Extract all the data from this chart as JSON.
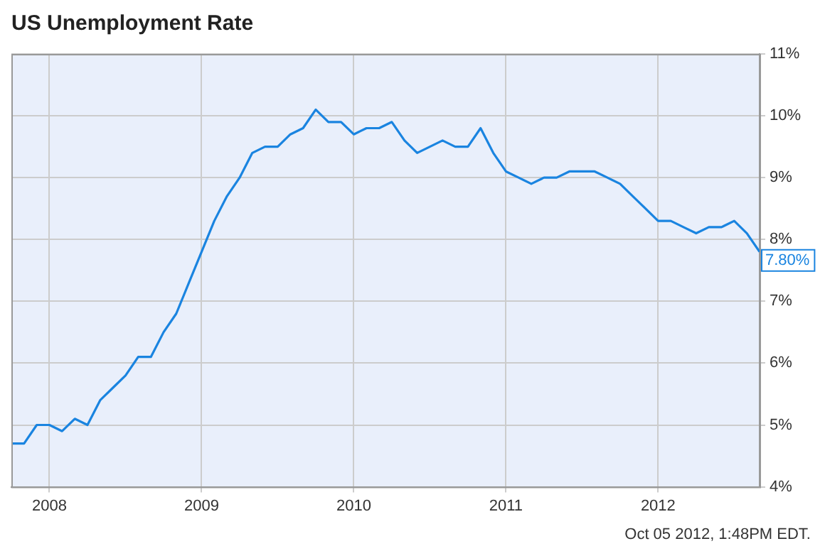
{
  "chart_data": {
    "type": "line",
    "title": "US Unemployment Rate",
    "x": [
      "2007-10",
      "2007-11",
      "2007-12",
      "2008-01",
      "2008-02",
      "2008-03",
      "2008-04",
      "2008-05",
      "2008-06",
      "2008-07",
      "2008-08",
      "2008-09",
      "2008-10",
      "2008-11",
      "2008-12",
      "2009-01",
      "2009-02",
      "2009-03",
      "2009-04",
      "2009-05",
      "2009-06",
      "2009-07",
      "2009-08",
      "2009-09",
      "2009-10",
      "2009-11",
      "2009-12",
      "2010-01",
      "2010-02",
      "2010-03",
      "2010-04",
      "2010-05",
      "2010-06",
      "2010-07",
      "2010-08",
      "2010-09",
      "2010-10",
      "2010-11",
      "2010-12",
      "2011-01",
      "2011-02",
      "2011-03",
      "2011-04",
      "2011-05",
      "2011-06",
      "2011-07",
      "2011-08",
      "2011-09",
      "2011-10",
      "2011-11",
      "2011-12",
      "2012-01",
      "2012-02",
      "2012-03",
      "2012-04",
      "2012-05",
      "2012-06",
      "2012-07",
      "2012-08",
      "2012-09"
    ],
    "series": [
      {
        "color": "#1a84e0",
        "values": [
          4.7,
          4.7,
          5.0,
          5.0,
          4.9,
          5.1,
          5.0,
          5.4,
          5.6,
          5.8,
          6.1,
          6.1,
          6.5,
          6.8,
          7.3,
          7.8,
          8.3,
          8.7,
          9.0,
          9.4,
          9.5,
          9.5,
          9.7,
          9.8,
          10.1,
          9.9,
          9.9,
          9.7,
          9.8,
          9.8,
          9.9,
          9.6,
          9.4,
          9.5,
          9.6,
          9.5,
          9.5,
          9.8,
          9.4,
          9.1,
          9.0,
          8.9,
          9.0,
          9.0,
          9.1,
          9.1,
          9.1,
          9.0,
          8.9,
          8.7,
          8.5,
          8.3,
          8.3,
          8.2,
          8.1,
          8.2,
          8.2,
          8.3,
          8.1,
          7.8
        ]
      }
    ],
    "xlim": [
      "2007-10",
      "2012-09"
    ],
    "xticks": [
      {
        "value": "2008-01",
        "label": "2008"
      },
      {
        "value": "2009-01",
        "label": "2009"
      },
      {
        "value": "2010-01",
        "label": "2010"
      },
      {
        "value": "2011-01",
        "label": "2011"
      },
      {
        "value": "2012-01",
        "label": "2012"
      }
    ],
    "ylim": [
      4,
      11
    ],
    "yticks": [
      {
        "value": 4,
        "label": "4%"
      },
      {
        "value": 5,
        "label": "5%"
      },
      {
        "value": 6,
        "label": "6%"
      },
      {
        "value": 7,
        "label": "7%"
      },
      {
        "value": 8,
        "label": "8%"
      },
      {
        "value": 9,
        "label": "9%"
      },
      {
        "value": 10,
        "label": "10%"
      },
      {
        "value": 11,
        "label": "11%"
      }
    ],
    "grid": true,
    "marker": "none",
    "line_style": "solid",
    "annotations": [
      {
        "text": "7.80%",
        "x": "2012-09",
        "y": 7.8
      },
      "Oct 05 2012, 1:48PM EDT."
    ]
  }
}
